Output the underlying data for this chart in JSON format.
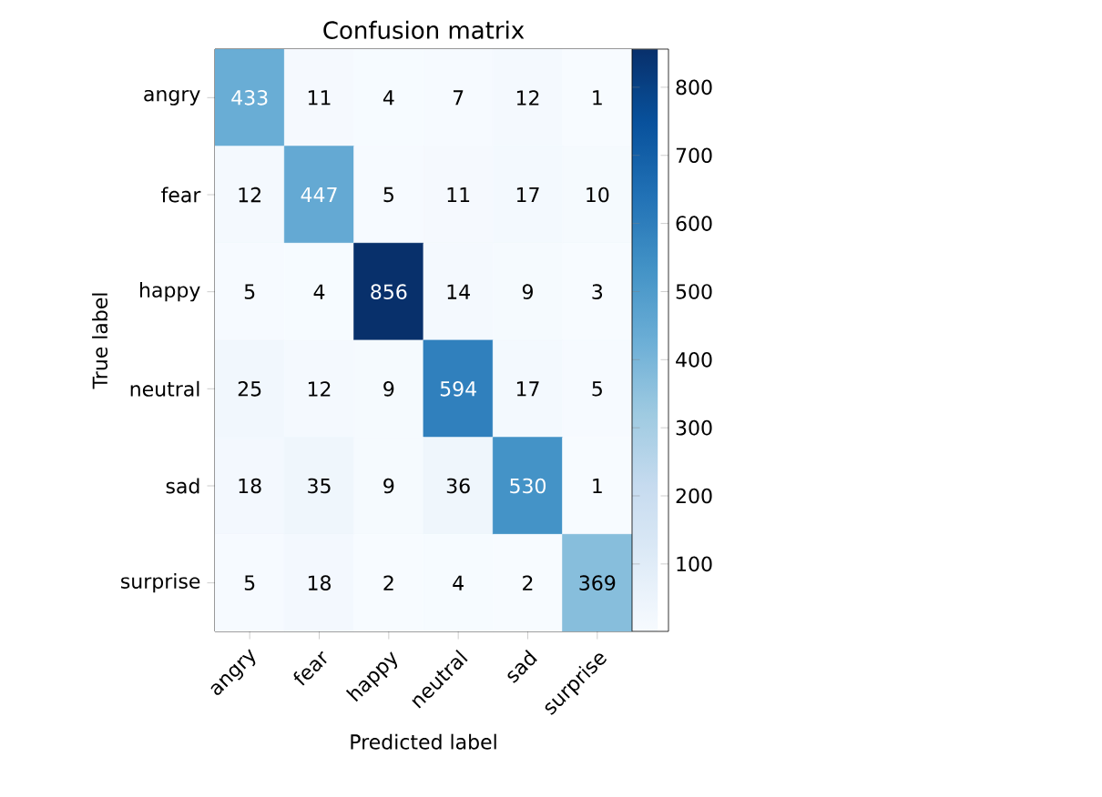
{
  "chart_data": {
    "type": "heatmap",
    "title": "Confusion matrix",
    "xlabel": "Predicted label",
    "ylabel": "True label",
    "categories": [
      "angry",
      "fear",
      "happy",
      "neutral",
      "sad",
      "surprise"
    ],
    "y_categories": [
      "angry",
      "fear",
      "happy",
      "neutral",
      "sad",
      "surprise"
    ],
    "cells": [
      [
        433,
        11,
        4,
        7,
        12,
        1
      ],
      [
        12,
        447,
        5,
        11,
        17,
        10
      ],
      [
        5,
        4,
        856,
        14,
        9,
        3
      ],
      [
        25,
        12,
        9,
        594,
        17,
        5
      ],
      [
        18,
        35,
        9,
        36,
        530,
        1
      ],
      [
        5,
        18,
        2,
        4,
        2,
        369
      ]
    ],
    "data_labels": true,
    "clim": [
      1,
      856
    ],
    "cticks": [
      100,
      200,
      300,
      400,
      500,
      600,
      700,
      800
    ]
  }
}
